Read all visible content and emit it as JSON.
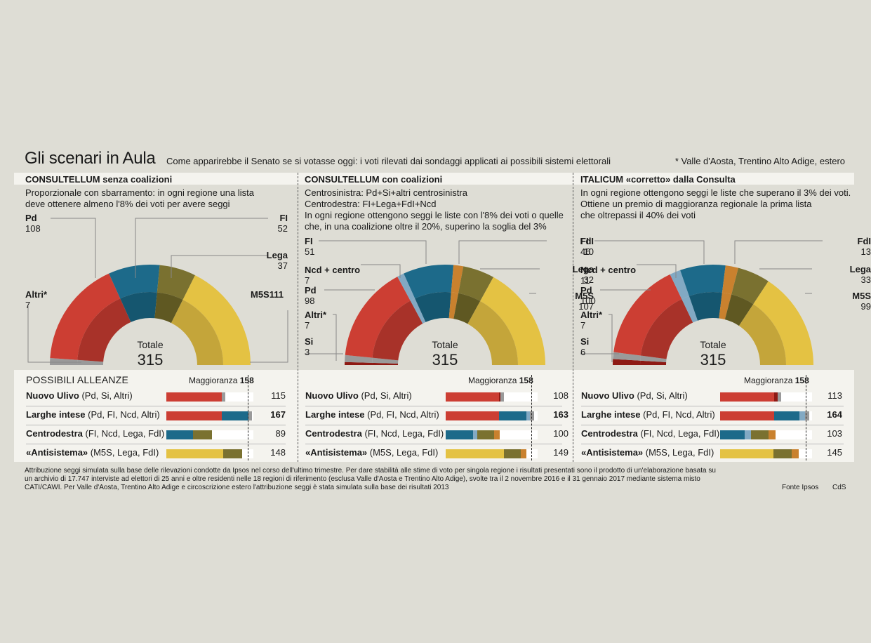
{
  "title": "Gli scenari in Aula",
  "subtitle": "Come apparirebbe il Senato se si votasse oggi: i voti rilevati dai sondaggi applicati ai possibili sistemi elettorali",
  "note": "* Valle d'Aosta, Trentino Alto Adige, estero",
  "colors": {
    "Pd": "#cc3e33",
    "Pd_inner": "#a83229",
    "Altri": "#9a9a9a",
    "Si": "#8e1a14",
    "FI": "#1d6a8a",
    "FI_inner": "#15566f",
    "Ncd": "#82a9c3",
    "FdI": "#c9812e",
    "Lega": "#7a7130",
    "Lega_inner": "#5f5822",
    "M5S": "#e4c243",
    "M5S_inner": "#c4a53a"
  },
  "total_label": "Totale",
  "alliances_title": "POSSIBILI ALLEANZE",
  "majority_label": "Maggioranza",
  "majority_value": "158",
  "chart_data": [
    {
      "type": "semicircle",
      "title": "CONSULTELLUM senza coalizioni",
      "description": "Proporzionale con sbarramento: in ogni regione una lista\ndeve ottenere almeno l'8% dei voti per avere seggi",
      "total": "315",
      "seats": [
        {
          "party": "Altri*",
          "value": 7,
          "color": "Altri"
        },
        {
          "party": "Pd",
          "value": 108,
          "color": "Pd"
        },
        {
          "party": "FI",
          "value": 52,
          "color": "FI"
        },
        {
          "party": "Lega",
          "value": 37,
          "color": "Lega"
        },
        {
          "party": "M5S",
          "value": 111,
          "color": "M5S"
        }
      ],
      "labels": [
        {
          "name": "Pd",
          "value": "108"
        },
        {
          "name": "Altri*",
          "value": "7"
        },
        {
          "name": "FI",
          "value": "52"
        },
        {
          "name": "Lega",
          "value": "37"
        },
        {
          "name": "M5S111",
          "value": ""
        }
      ],
      "alliances": [
        {
          "bold": "Nuovo Ulivo",
          "rest": " (Pd, Si, Altri)",
          "total": "115",
          "total_bold": false,
          "segments": [
            {
              "color": "Pd",
              "value": 108
            },
            {
              "color": "Altri",
              "value": 7
            }
          ]
        },
        {
          "bold": "Larghe intese",
          "rest": " (Pd, FI, Ncd, Altri)",
          "total": "167",
          "total_bold": true,
          "segments": [
            {
              "color": "Pd",
              "value": 108
            },
            {
              "color": "FI",
              "value": 52
            },
            {
              "color": "Altri",
              "value": 7
            }
          ]
        },
        {
          "bold": "Centrodestra",
          "rest": " (FI, Ncd, Lega, FdI)",
          "total": "89",
          "total_bold": false,
          "segments": [
            {
              "color": "FI",
              "value": 52
            },
            {
              "color": "Lega",
              "value": 37
            }
          ]
        },
        {
          "bold": "«Antisistema»",
          "rest": " (M5S, Lega, FdI)",
          "total": "148",
          "total_bold": false,
          "segments": [
            {
              "color": "M5S",
              "value": 111
            },
            {
              "color": "Lega",
              "value": 37
            }
          ]
        }
      ]
    },
    {
      "type": "semicircle",
      "title": "CONSULTELLUM con coalizioni",
      "description": "Centrosinistra: Pd+Si+altri centrosinistra\nCentrodestra: FI+Lega+FdI+Ncd\nIn ogni regione ottengono seggi le liste con l'8% dei voti o quelle\nche, in una coalizione oltre il 20%, superino la soglia del 3%",
      "total": "315",
      "seats": [
        {
          "party": "Si",
          "value": 3,
          "color": "Si"
        },
        {
          "party": "Altri*",
          "value": 7,
          "color": "Altri"
        },
        {
          "party": "Pd",
          "value": 98,
          "color": "Pd"
        },
        {
          "party": "Ncd + centro",
          "value": 7,
          "color": "Ncd"
        },
        {
          "party": "FI",
          "value": 51,
          "color": "FI"
        },
        {
          "party": "FdI",
          "value": 10,
          "color": "FdI"
        },
        {
          "party": "Lega",
          "value": 32,
          "color": "Lega"
        },
        {
          "party": "M5S",
          "value": 107,
          "color": "M5S"
        }
      ],
      "labels": [
        {
          "name": "FI",
          "value": "51"
        },
        {
          "name": "Ncd + centro",
          "value": "7"
        },
        {
          "name": "Pd",
          "value": "98"
        },
        {
          "name": "Altri*",
          "value": "7"
        },
        {
          "name": "Si",
          "value": "3"
        },
        {
          "name": "FdI",
          "value": "10"
        },
        {
          "name": "Lega",
          "value": "32"
        },
        {
          "name": "M5S",
          "value": "107"
        }
      ],
      "alliances": [
        {
          "bold": "Nuovo Ulivo",
          "rest": " (Pd, Si, Altri)",
          "total": "108",
          "total_bold": false,
          "segments": [
            {
              "color": "Pd",
              "value": 98
            },
            {
              "color": "Si",
              "value": 3
            },
            {
              "color": "Altri",
              "value": 7
            }
          ]
        },
        {
          "bold": "Larghe intese",
          "rest": " (Pd, FI, Ncd, Altri)",
          "total": "163",
          "total_bold": true,
          "segments": [
            {
              "color": "Pd",
              "value": 98
            },
            {
              "color": "FI",
              "value": 51
            },
            {
              "color": "Ncd",
              "value": 7
            },
            {
              "color": "Altri",
              "value": 7
            }
          ]
        },
        {
          "bold": "Centrodestra",
          "rest": " (FI, Ncd, Lega, FdI)",
          "total": "100",
          "total_bold": false,
          "segments": [
            {
              "color": "FI",
              "value": 51
            },
            {
              "color": "Ncd",
              "value": 7
            },
            {
              "color": "Lega",
              "value": 32
            },
            {
              "color": "FdI",
              "value": 10
            }
          ]
        },
        {
          "bold": "«Antisistema»",
          "rest": " (M5S, Lega, FdI)",
          "total": "149",
          "total_bold": false,
          "segments": [
            {
              "color": "M5S",
              "value": 107
            },
            {
              "color": "Lega",
              "value": 32
            },
            {
              "color": "FdI",
              "value": 10
            }
          ]
        }
      ]
    },
    {
      "type": "semicircle",
      "title": "ITALICUM «corretto» dalla Consulta",
      "description": "In ogni regione ottengono seggi le liste che superano il 3% dei voti.\nOttiene un premio di maggioranza regionale la prima lista\nche oltrepassi il 40% dei voti",
      "total": "315",
      "seats": [
        {
          "party": "Si",
          "value": 6,
          "color": "Si"
        },
        {
          "party": "Altri*",
          "value": 7,
          "color": "Altri"
        },
        {
          "party": "Pd",
          "value": 100,
          "color": "Pd"
        },
        {
          "party": "Ncd + centro",
          "value": 11,
          "color": "Ncd"
        },
        {
          "party": "FI",
          "value": 46,
          "color": "FI"
        },
        {
          "party": "FdI",
          "value": 13,
          "color": "FdI"
        },
        {
          "party": "Lega",
          "value": 33,
          "color": "Lega"
        },
        {
          "party": "M5S",
          "value": 99,
          "color": "M5S"
        }
      ],
      "labels": [
        {
          "name": "FI",
          "value": "46"
        },
        {
          "name": "Ncd + centro",
          "value": "11"
        },
        {
          "name": "Pd",
          "value": "100"
        },
        {
          "name": "Altri*",
          "value": "7"
        },
        {
          "name": "Si",
          "value": "6"
        },
        {
          "name": "FdI",
          "value": "13"
        },
        {
          "name": "Lega",
          "value": "33"
        },
        {
          "name": "M5S",
          "value": "99"
        }
      ],
      "alliances": [
        {
          "bold": "Nuovo Ulivo",
          "rest": " (Pd, Si, Altri)",
          "total": "113",
          "total_bold": false,
          "segments": [
            {
              "color": "Pd",
              "value": 100
            },
            {
              "color": "Si",
              "value": 6
            },
            {
              "color": "Altri",
              "value": 7
            }
          ]
        },
        {
          "bold": "Larghe intese",
          "rest": " (Pd, FI, Ncd, Altri)",
          "total": "164",
          "total_bold": true,
          "segments": [
            {
              "color": "Pd",
              "value": 100
            },
            {
              "color": "FI",
              "value": 46
            },
            {
              "color": "Ncd",
              "value": 11
            },
            {
              "color": "Altri",
              "value": 7
            }
          ]
        },
        {
          "bold": "Centrodestra",
          "rest": " (FI, Ncd, Lega, FdI)",
          "total": "103",
          "total_bold": false,
          "segments": [
            {
              "color": "FI",
              "value": 46
            },
            {
              "color": "Ncd",
              "value": 11
            },
            {
              "color": "Lega",
              "value": 33
            },
            {
              "color": "FdI",
              "value": 13
            }
          ]
        },
        {
          "bold": "«Antisistema»",
          "rest": " (M5S, Lega, FdI)",
          "total": "145",
          "total_bold": false,
          "segments": [
            {
              "color": "M5S",
              "value": 99
            },
            {
              "color": "Lega",
              "value": 33
            },
            {
              "color": "FdI",
              "value": 13
            }
          ]
        }
      ]
    }
  ],
  "footnote": "Attribuzione seggi simulata sulla base delle rilevazioni condotte da Ipsos nel corso dell'ultimo trimestre. Per dare stabilità alle stime di voto per singola regione i risultati presentati sono il prodotto di un'elaborazione basata su un archivio di 17.747 interviste ad elettori di 25 anni e oltre residenti nelle 18 regioni di riferimento (esclusa Valle d'Aosta e Trentino Alto Adige), svolte tra il 2 novembre 2016 e il 31 gennaio 2017 mediante sistema misto CATI/CAWI. Per Valle d'Aosta, Trentino Alto Adige e circoscrizione estero l'attribuzione seggi è stata simulata sulla base dei risultati 2013",
  "source": "Fonte Ipsos",
  "credit": "CdS"
}
